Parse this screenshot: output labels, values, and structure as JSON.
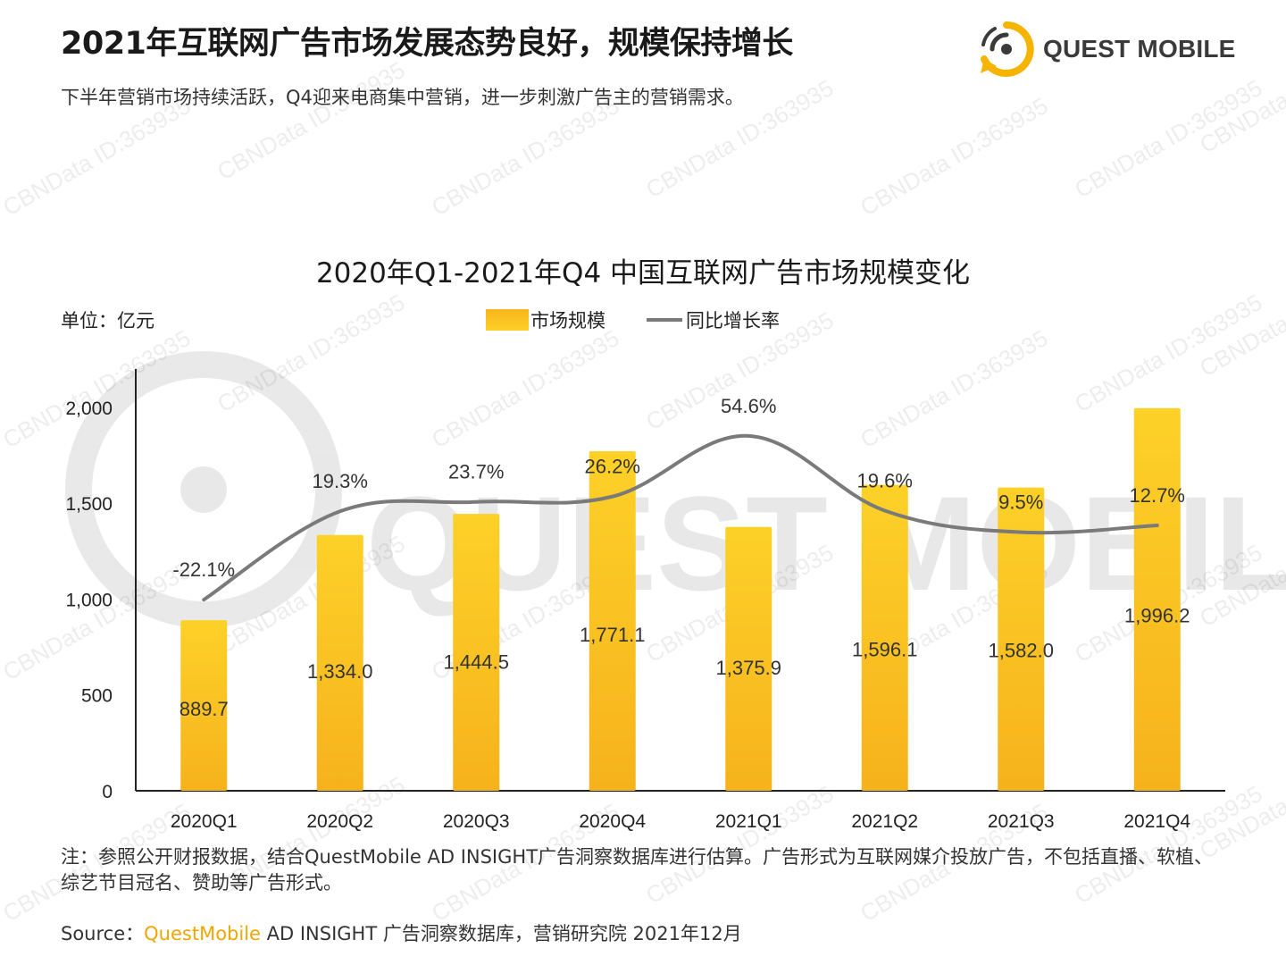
{
  "header": {
    "title": "2021年互联网广告市场发展态势良好，规模保持增长",
    "subtitle": "下半年营销市场持续活跃，Q4迎来电商集中营销，进一步刺激广告主的营销需求。",
    "logo_text": "QUEST MOBILE"
  },
  "watermark": "CBNData ID:363935",
  "colors": {
    "bar": "#f9c21d",
    "line": "#7a7a7a",
    "brand": "#f0a500"
  },
  "chart_data": {
    "type": "bar",
    "title": "2020年Q1-2021年Q4 中国互联网广告市场规模变化",
    "unit_label": "单位：亿元",
    "categories": [
      "2020Q1",
      "2020Q2",
      "2020Q3",
      "2020Q4",
      "2021Q1",
      "2021Q2",
      "2021Q3",
      "2021Q4"
    ],
    "ylim": [
      0,
      2200
    ],
    "yticks": [
      0,
      500,
      1000,
      1500,
      2000
    ],
    "ytick_labels": [
      "0",
      "500",
      "1,000",
      "1,500",
      "2,000"
    ],
    "series": [
      {
        "name": "市场规模",
        "type": "bar",
        "values": [
          889.7,
          1334.0,
          1444.5,
          1771.1,
          1375.9,
          1596.1,
          1582.0,
          1996.2
        ],
        "labels": [
          "889.7",
          "1,334.0",
          "1,444.5",
          "1,771.1",
          "1,375.9",
          "1,596.1",
          "1,582.0",
          "1,996.2"
        ]
      },
      {
        "name": "同比增长率",
        "type": "line",
        "values": [
          -22.1,
          19.3,
          23.7,
          26.2,
          54.6,
          19.6,
          9.5,
          12.7
        ],
        "labels": [
          "-22.1%",
          "19.3%",
          "23.7%",
          "26.2%",
          "54.6%",
          "19.6%",
          "9.5%",
          "12.7%"
        ]
      }
    ],
    "legend_position": "top-center",
    "grid": false
  },
  "footer": {
    "note": "注：参照公开财报数据，结合QuestMobile AD INSIGHT广告洞察数据库进行估算。广告形式为互联网媒介投放广告，不包括直播、软植、综艺节目冠名、赞助等广告形式。",
    "source_prefix": "Source：",
    "source_brand": "QuestMobile",
    "source_rest": " AD INSIGHT 广告洞察数据库，营销研究院 2021年12月"
  }
}
